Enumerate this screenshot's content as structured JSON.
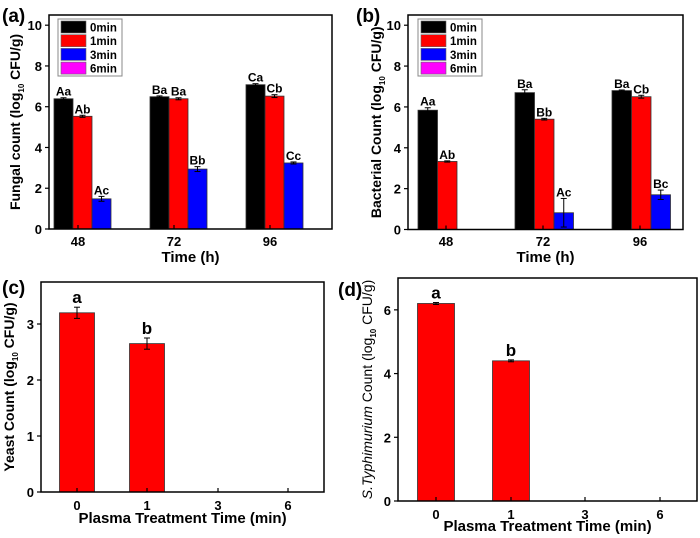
{
  "colors": {
    "0min": "#000000",
    "1min": "#ff0000",
    "3min": "#0000ff",
    "6min": "#ff00ff"
  },
  "chart_data": [
    {
      "panel": "(a)",
      "type": "bar",
      "title": "",
      "xlabel": "Time (h)",
      "ylabel_main": "Fungal count (log",
      "ylabel_sub": "10",
      "ylabel_end": " CFU/g)",
      "categories": [
        "48",
        "72",
        "96"
      ],
      "ylim": [
        0,
        10.5
      ],
      "yticks": [
        0,
        2,
        4,
        6,
        8,
        10
      ],
      "legend": {
        "placement": "top-left",
        "entries": [
          "0min",
          "1min",
          "3min",
          "6min"
        ]
      },
      "series": [
        {
          "name": "0min",
          "values": [
            6.39,
            6.49,
            7.08
          ],
          "errors": [
            0.05,
            0.04,
            0.05
          ],
          "labels": [
            "Aa",
            "Ba",
            "Ca"
          ]
        },
        {
          "name": "1min",
          "values": [
            5.53,
            6.39,
            6.52
          ],
          "errors": [
            0.05,
            0.05,
            0.07
          ],
          "labels": [
            "Ab",
            "Ba",
            "Cb"
          ]
        },
        {
          "name": "3min",
          "values": [
            1.48,
            2.94,
            3.24
          ],
          "errors": [
            0.12,
            0.12,
            0.05
          ],
          "labels": [
            "Ac",
            "Bb",
            "Cc"
          ]
        },
        {
          "name": "6min",
          "values": [
            0,
            0,
            0
          ],
          "errors": [
            0,
            0,
            0
          ],
          "labels": [
            "",
            "",
            ""
          ]
        }
      ]
    },
    {
      "panel": "(b)",
      "type": "bar",
      "title": "",
      "xlabel": "Time (h)",
      "ylabel_main": "Bacterial Count (log",
      "ylabel_sub": "10",
      "ylabel_end": " CFU/g)",
      "categories": [
        "48",
        "72",
        "96"
      ],
      "ylim": [
        0,
        10.5
      ],
      "yticks": [
        0,
        2,
        4,
        6,
        8,
        10
      ],
      "legend": {
        "placement": "top-left",
        "entries": [
          "0min",
          "1min",
          "3min",
          "6min"
        ]
      },
      "series": [
        {
          "name": "0min",
          "values": [
            5.84,
            6.7,
            6.8
          ],
          "errors": [
            0.12,
            0.14,
            0.03
          ],
          "labels": [
            "Aa",
            "Ba",
            "Ba"
          ]
        },
        {
          "name": "1min",
          "values": [
            3.33,
            5.4,
            6.5
          ],
          "errors": [
            0.03,
            0.04,
            0.07
          ],
          "labels": [
            "Ab",
            "Bb",
            "Cb"
          ]
        },
        {
          "name": "3min",
          "values": [
            0,
            0.82,
            1.7
          ],
          "errors": [
            0,
            0.7,
            0.23
          ],
          "labels": [
            "",
            "Ac",
            "Bc"
          ]
        },
        {
          "name": "6min",
          "values": [
            0,
            0,
            0
          ],
          "errors": [
            0,
            0,
            0
          ],
          "labels": [
            "",
            "",
            ""
          ]
        }
      ]
    },
    {
      "panel": "(c)",
      "type": "bar",
      "title": "",
      "xlabel": "Plasma Treatment Time (min)",
      "ylabel_main": "Yeast Count (log",
      "ylabel_sub": "10",
      "ylabel_end": " CFU/g)",
      "categories": [
        "0",
        "1",
        "3",
        "6"
      ],
      "ylim": [
        0,
        3.75
      ],
      "yticks": [
        0,
        1,
        2,
        3
      ],
      "series": [
        {
          "name": "Yeast",
          "values": [
            3.2,
            2.65,
            0,
            0
          ],
          "errors": [
            0.1,
            0.1,
            0,
            0
          ],
          "labels": [
            "a",
            "b",
            "",
            ""
          ]
        }
      ]
    },
    {
      "panel": "(d)",
      "type": "bar",
      "title": "",
      "xlabel": "Plasma Treatment Time (min)",
      "ylabel_italic": "S.Typhimurium",
      "ylabel_main": " Count (log",
      "ylabel_sub": "10",
      "ylabel_end": " CFU/g)",
      "categories": [
        "0",
        "1",
        "3",
        "6"
      ],
      "ylim": [
        0,
        7
      ],
      "yticks": [
        0,
        2,
        4,
        6
      ],
      "series": [
        {
          "name": "S.Typhimurium",
          "values": [
            6.2,
            4.4,
            0,
            0
          ],
          "errors": [
            0.03,
            0.03,
            0,
            0
          ],
          "labels": [
            "a",
            "b",
            "",
            ""
          ]
        }
      ]
    }
  ]
}
